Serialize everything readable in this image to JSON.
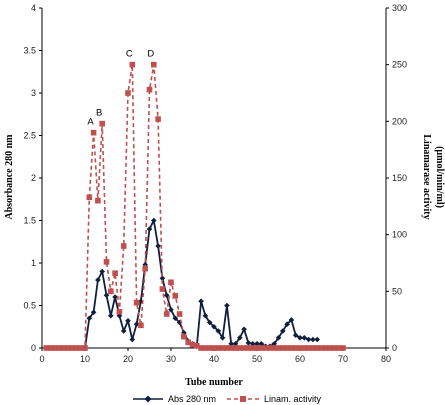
{
  "chart_data": {
    "type": "line",
    "xlabel": "Tube number",
    "ylabel_left": "Absorbance 280 nm",
    "ylabel_right_line1": "Linamarase activity",
    "ylabel_right_line2": "(µmol/min/ml)",
    "xlim": [
      0,
      80
    ],
    "x_ticks": [
      0,
      10,
      20,
      30,
      40,
      50,
      60,
      70,
      80
    ],
    "ylim_left": [
      0,
      4
    ],
    "y_left_ticks": [
      0,
      0.5,
      1,
      1.5,
      2,
      2.5,
      3,
      3.5,
      4
    ],
    "ylim_right": [
      0,
      300
    ],
    "y_right_ticks": [
      0,
      50,
      100,
      150,
      200,
      250,
      300
    ],
    "grid": false,
    "legend_position": "bottom",
    "series": [
      {
        "name": "Abs 280 nm",
        "axis": "left",
        "color": "#0f1f3d",
        "marker": "diamond",
        "line_style": "solid",
        "x": [
          1,
          2,
          3,
          4,
          5,
          6,
          7,
          8,
          9,
          10,
          11,
          12,
          13,
          14,
          15,
          16,
          17,
          18,
          19,
          20,
          21,
          22,
          23,
          24,
          25,
          26,
          27,
          28,
          29,
          30,
          31,
          32,
          33,
          34,
          35,
          36,
          37,
          38,
          39,
          40,
          41,
          42,
          43,
          44,
          45,
          46,
          47,
          48,
          49,
          50,
          51,
          52,
          53,
          54,
          55,
          56,
          57,
          58,
          59,
          60,
          61,
          62,
          63,
          64
        ],
        "y": [
          0,
          0,
          0,
          0,
          0,
          0,
          0,
          0,
          0,
          0,
          0.35,
          0.42,
          0.8,
          0.9,
          0.62,
          0.38,
          0.6,
          0.38,
          0.2,
          0.32,
          0.1,
          0.28,
          0.55,
          0.98,
          1.4,
          1.5,
          1.2,
          0.82,
          0.62,
          0.45,
          0.35,
          0.3,
          0.18,
          0.08,
          0.05,
          0.02,
          0.55,
          0.38,
          0.3,
          0.25,
          0.2,
          0.12,
          0.5,
          0.05,
          0.05,
          0.12,
          0.22,
          0.06,
          0.05,
          0.05,
          0.05,
          0.02,
          0.02,
          0.05,
          0.12,
          0.2,
          0.28,
          0.33,
          0.15,
          0.12,
          0.12,
          0.1,
          0.1,
          0.1
        ]
      },
      {
        "name": "Linam. activity",
        "axis": "right",
        "color": "#c0504d",
        "marker": "square",
        "line_style": "dashed",
        "x": [
          1,
          2,
          3,
          4,
          5,
          6,
          7,
          8,
          9,
          10,
          11,
          12,
          13,
          14,
          15,
          16,
          17,
          18,
          19,
          20,
          21,
          22,
          23,
          24,
          25,
          26,
          27,
          28,
          29,
          30,
          31,
          32,
          33,
          34,
          35,
          36,
          37,
          38,
          39,
          40,
          41,
          42,
          43,
          44,
          45,
          46,
          47,
          48,
          49,
          50,
          51,
          52,
          53,
          54,
          55,
          56,
          57,
          58,
          59,
          60,
          61,
          62,
          63,
          64,
          65,
          66,
          67,
          68,
          69,
          70
        ],
        "y": [
          0,
          0,
          0,
          0,
          0,
          0,
          0,
          0,
          0,
          0,
          133,
          190,
          130,
          198,
          76,
          50,
          66,
          32,
          90,
          225,
          250,
          40,
          20,
          70,
          228,
          250,
          202,
          52,
          30,
          58,
          46,
          30,
          10,
          5,
          3,
          2,
          0,
          0,
          0,
          0,
          0,
          0,
          0,
          0,
          0,
          0,
          0,
          0,
          0,
          0,
          0,
          0,
          0,
          0,
          0,
          0,
          0,
          0,
          0,
          0,
          0,
          0,
          0,
          0,
          0,
          0,
          0,
          0,
          0,
          0
        ]
      }
    ],
    "annotations": [
      {
        "text": "A",
        "x": 12,
        "y_right": 190
      },
      {
        "text": "B",
        "x": 14,
        "y_right": 198
      },
      {
        "text": "C",
        "x": 21,
        "y_right": 250
      },
      {
        "text": "D",
        "x": 26,
        "y_right": 250
      }
    ]
  }
}
